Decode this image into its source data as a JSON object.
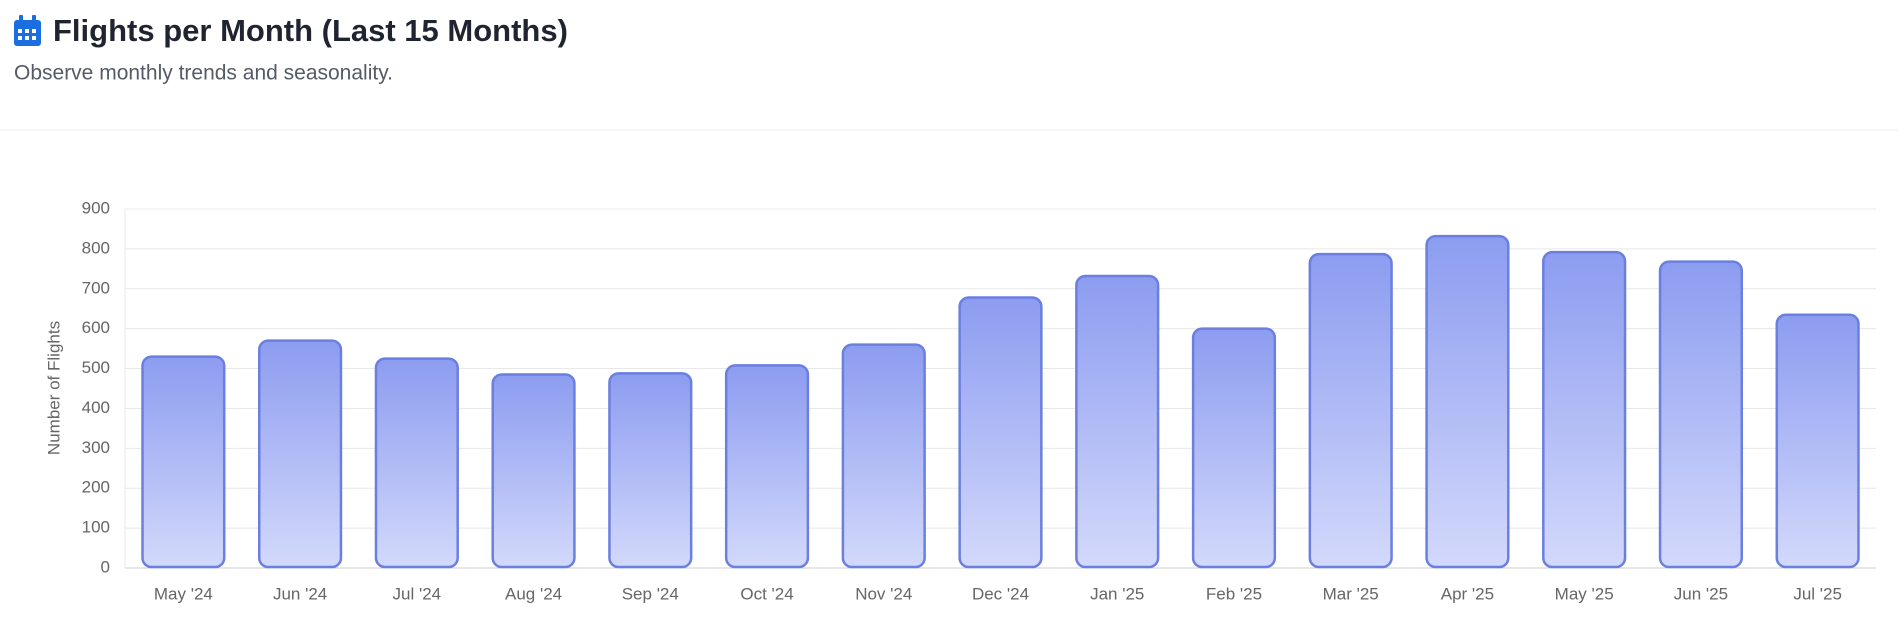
{
  "chart_data": {
    "type": "bar",
    "title": "Flights per Month (Last 15 Months)",
    "subtitle": "Observe monthly trends and seasonality.",
    "y_label": "Number of Flights",
    "categories": [
      "May '24",
      "Jun '24",
      "Jul '24",
      "Aug '24",
      "Sep '24",
      "Oct '24",
      "Nov '24",
      "Dec '24",
      "Jan '25",
      "Feb '25",
      "Mar '25",
      "Apr '25",
      "May '25",
      "Jun '25",
      "Jul '25"
    ],
    "values": [
      530,
      570,
      525,
      485,
      488,
      508,
      560,
      678,
      732,
      600,
      787,
      832,
      792,
      768,
      635
    ],
    "color": "#6b7fe0",
    "ylim": [
      0,
      900
    ],
    "yticks": [
      0,
      100,
      200,
      300,
      400,
      500,
      600,
      700,
      800,
      900
    ],
    "grid": true
  }
}
